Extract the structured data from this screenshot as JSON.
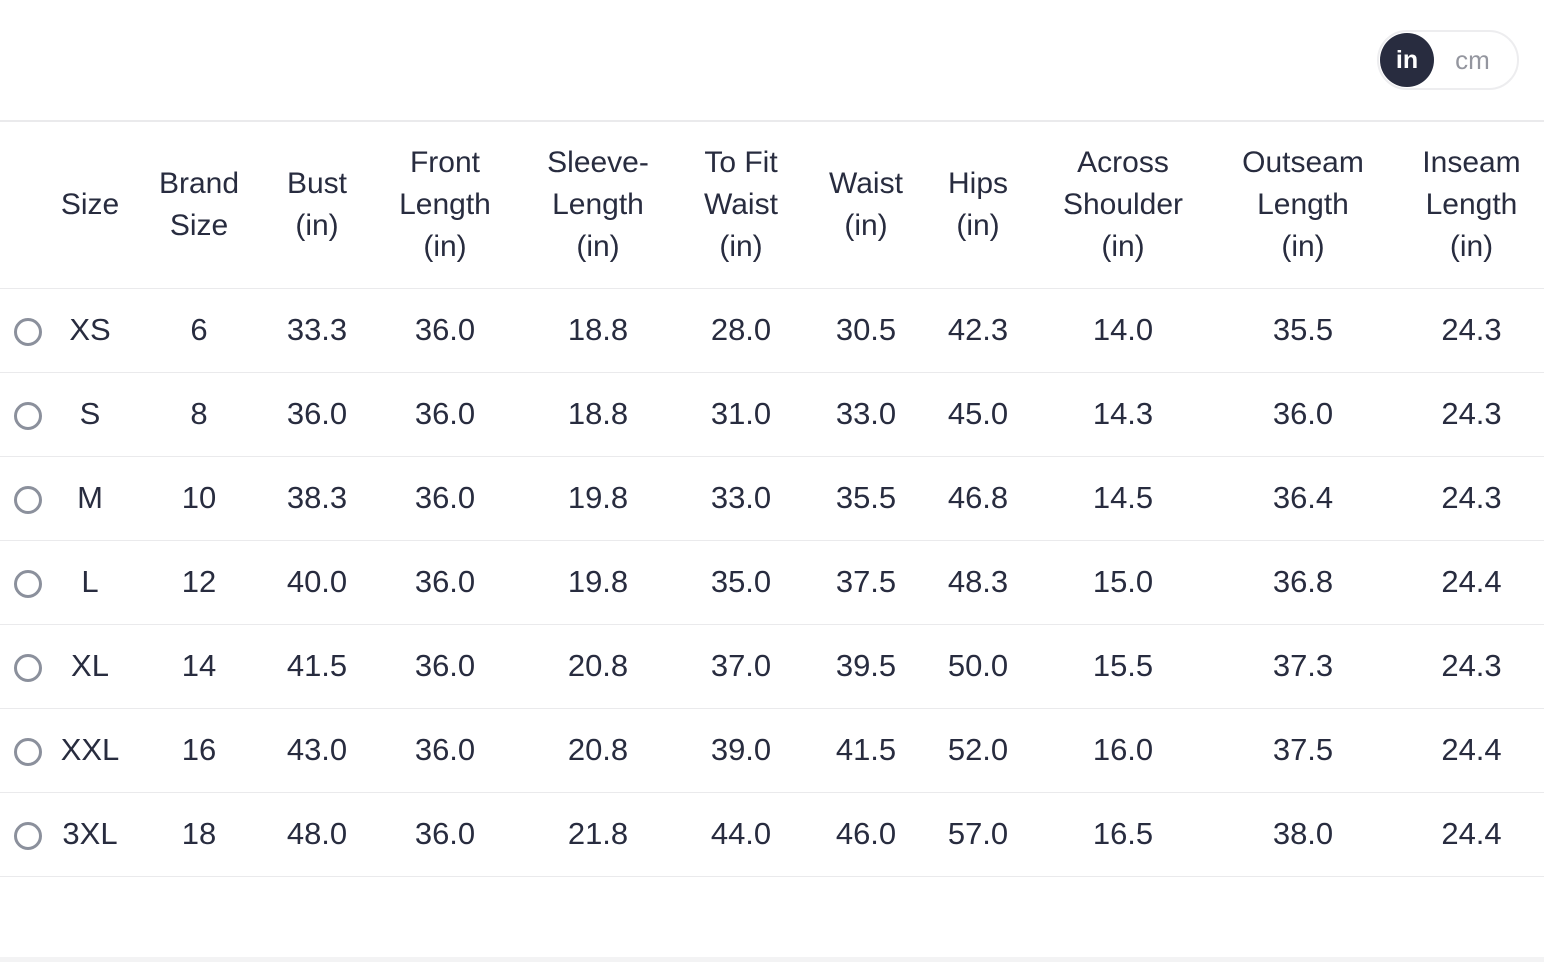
{
  "unit_toggle": {
    "selected": "in",
    "in_label": "in",
    "cm_label": "cm"
  },
  "size_table": {
    "columns": [
      {
        "id": "size",
        "label": "Size",
        "lines": [
          "Size"
        ]
      },
      {
        "id": "brand-size",
        "label": "Brand Size",
        "lines": [
          "Brand",
          "Size"
        ]
      },
      {
        "id": "bust",
        "label": "Bust (in)",
        "lines": [
          "Bust",
          "(in)"
        ]
      },
      {
        "id": "front-length",
        "label": "Front Length (in)",
        "lines": [
          "Front",
          "Length",
          "(in)"
        ]
      },
      {
        "id": "sleeve-length",
        "label": "Sleeve-Length (in)",
        "lines": [
          "Sleeve-",
          "Length",
          "(in)"
        ]
      },
      {
        "id": "to-fit-waist",
        "label": "To Fit Waist (in)",
        "lines": [
          "To Fit",
          "Waist",
          "(in)"
        ]
      },
      {
        "id": "waist",
        "label": "Waist (in)",
        "lines": [
          "Waist",
          "(in)"
        ]
      },
      {
        "id": "hips",
        "label": "Hips (in)",
        "lines": [
          "Hips",
          "(in)"
        ]
      },
      {
        "id": "across-shoulder",
        "label": "Across Shoulder (in)",
        "lines": [
          "Across",
          "Shoulder",
          "(in)"
        ]
      },
      {
        "id": "outseam-length",
        "label": "Outseam Length (in)",
        "lines": [
          "Outseam",
          "Length",
          "(in)"
        ]
      },
      {
        "id": "inseam-length",
        "label": "Inseam Length (in)",
        "lines": [
          "Inseam",
          "Length",
          "(in)"
        ]
      }
    ],
    "rows": [
      {
        "size": "XS",
        "selected": false,
        "values": [
          "6",
          "33.3",
          "36.0",
          "18.8",
          "28.0",
          "30.5",
          "42.3",
          "14.0",
          "35.5",
          "24.3"
        ]
      },
      {
        "size": "S",
        "selected": false,
        "values": [
          "8",
          "36.0",
          "36.0",
          "18.8",
          "31.0",
          "33.0",
          "45.0",
          "14.3",
          "36.0",
          "24.3"
        ]
      },
      {
        "size": "M",
        "selected": false,
        "values": [
          "10",
          "38.3",
          "36.0",
          "19.8",
          "33.0",
          "35.5",
          "46.8",
          "14.5",
          "36.4",
          "24.3"
        ]
      },
      {
        "size": "L",
        "selected": false,
        "values": [
          "12",
          "40.0",
          "36.0",
          "19.8",
          "35.0",
          "37.5",
          "48.3",
          "15.0",
          "36.8",
          "24.4"
        ]
      },
      {
        "size": "XL",
        "selected": false,
        "values": [
          "14",
          "41.5",
          "36.0",
          "20.8",
          "37.0",
          "39.5",
          "50.0",
          "15.5",
          "37.3",
          "24.3"
        ]
      },
      {
        "size": "XXL",
        "selected": false,
        "values": [
          "16",
          "43.0",
          "36.0",
          "20.8",
          "39.0",
          "41.5",
          "52.0",
          "16.0",
          "37.5",
          "24.4"
        ]
      },
      {
        "size": "3XL",
        "selected": false,
        "values": [
          "18",
          "48.0",
          "36.0",
          "21.8",
          "44.0",
          "46.0",
          "57.0",
          "16.5",
          "38.0",
          "24.4"
        ]
      }
    ]
  },
  "colors": {
    "accent_dark": "#282c3f",
    "muted_gray": "#94969f",
    "divider": "#eaeaec",
    "radio_border": "#8b909c",
    "bottom_band": "#f3f3f4"
  }
}
